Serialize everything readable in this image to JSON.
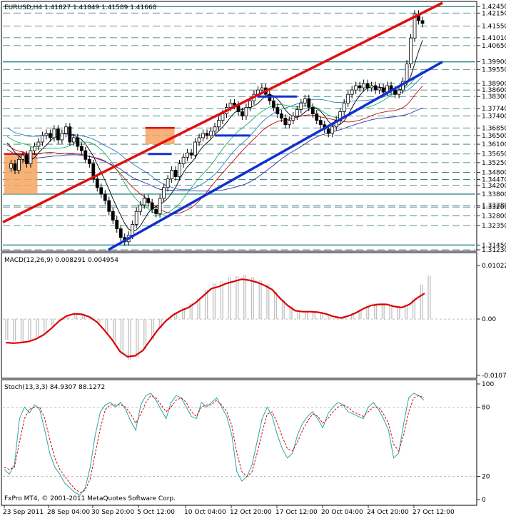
{
  "chart_data": [
    {
      "type": "line",
      "subtype": "candlestick",
      "title": "EURUSD,H4  1.41827 1.41849 1.41589 1.41668",
      "ylim": [
        1.3123,
        1.4262
      ],
      "ytick_labels": [
        "1.42450",
        "1.42150",
        "1.41550",
        "1.41010",
        "1.40650",
        "1.39900",
        "1.39550",
        "1.38900",
        "1.38600",
        "1.38300",
        "1.37740",
        "1.37400",
        "1.36850",
        "1.36500",
        "1.36100",
        "1.35650",
        "1.35250",
        "1.34800",
        "1.34470",
        "1.34200",
        "1.33800",
        "1.33280",
        "1.33200",
        "1.32800",
        "1.32350",
        "1.31450",
        "1.31230"
      ],
      "ytick_values": [
        1.4245,
        1.4215,
        1.4155,
        1.4101,
        1.4065,
        1.399,
        1.3955,
        1.389,
        1.386,
        1.383,
        1.3774,
        1.374,
        1.3685,
        1.365,
        1.361,
        1.3565,
        1.3525,
        1.348,
        1.3447,
        1.342,
        1.338,
        1.3328,
        1.332,
        1.328,
        1.3235,
        1.3145,
        1.3123
      ],
      "highlighted_levels": [
        1.4245,
        1.399,
        1.338,
        1.3145
      ],
      "x_tick_labels": [
        "23 Sep 2011",
        "28 Sep 04:00",
        "30 Sep 20:00",
        "5 Oct 12:00",
        "10 Oct 04:00",
        "12 Oct 20:00",
        "17 Oct 12:00",
        "20 Oct 04:00",
        "24 Oct 20:00",
        "27 Oct 12:00"
      ],
      "close_path": [
        1.35,
        1.352,
        1.349,
        1.354,
        1.356,
        1.352,
        1.358,
        1.36,
        1.362,
        1.365,
        1.366,
        1.364,
        1.368,
        1.363,
        1.366,
        1.369,
        1.362,
        1.364,
        1.36,
        1.358,
        1.354,
        1.352,
        1.345,
        1.341,
        1.338,
        1.335,
        1.33,
        1.326,
        1.322,
        1.318,
        1.316,
        1.319,
        1.324,
        1.33,
        1.333,
        1.336,
        1.334,
        1.331,
        1.329,
        1.336,
        1.341,
        1.345,
        1.349,
        1.346,
        1.352,
        1.355,
        1.357,
        1.356,
        1.362,
        1.364,
        1.366,
        1.365,
        1.367,
        1.369,
        1.372,
        1.375,
        1.378,
        1.38,
        1.379,
        1.376,
        1.374,
        1.378,
        1.381,
        1.384,
        1.386,
        1.387,
        1.384,
        1.381,
        1.378,
        1.375,
        1.373,
        1.37,
        1.372,
        1.374,
        1.377,
        1.38,
        1.382,
        1.378,
        1.375,
        1.372,
        1.37,
        1.368,
        1.366,
        1.369,
        1.372,
        1.376,
        1.38,
        1.384,
        1.386,
        1.388,
        1.387,
        1.389,
        1.387,
        1.388,
        1.386,
        1.387,
        1.385,
        1.388,
        1.386,
        1.384,
        1.386,
        1.39,
        1.398,
        1.41,
        1.421,
        1.418,
        1.4167
      ],
      "channel_lines": [
        {
          "name": "resistance",
          "color": "#e01010",
          "from": [
            0,
            1.325
          ],
          "to": [
            1,
            1.4262
          ]
        },
        {
          "name": "support",
          "color": "#1030d0",
          "from": [
            0.24,
            1.3123
          ],
          "to": [
            1,
            1.399
          ]
        }
      ],
      "annotated_ranges": [
        {
          "color": "#f4a460",
          "from_idx": 0,
          "to_idx": 7,
          "low": 1.338,
          "high": 1.3565
        },
        {
          "color": "#f4a460",
          "from_idx": 36,
          "to_idx": 42,
          "low": 1.361,
          "high": 1.3685
        }
      ],
      "short_support_segments": [
        {
          "color": "#1030d0",
          "from_idx": 36,
          "to_idx": 42,
          "value": 1.3565
        },
        {
          "color": "#1030d0",
          "from_idx": 53,
          "to_idx": 62,
          "value": 1.365
        },
        {
          "color": "#1030d0",
          "from_idx": 64,
          "to_idx": 74,
          "value": 1.383
        }
      ],
      "moving_averages": [
        {
          "color": "#000000",
          "name": ""
        },
        {
          "color": "#2b7fc0",
          "name": ""
        },
        {
          "color": "#20b060",
          "name": ""
        },
        {
          "color": "#c01010",
          "name": ""
        },
        {
          "color": "#3030a0",
          "name": ""
        }
      ]
    },
    {
      "type": "line",
      "title": "MACD(12,26,9) 0.008291 0.004954",
      "ylim": [
        -0.01076,
        0.01022
      ],
      "ytick_labels": [
        "0.01022",
        "0.00",
        "-0.01076"
      ],
      "ytick_values": [
        0.01022,
        0.0,
        -0.01076
      ],
      "signal_color": "#dd0000",
      "histogram_color": "#c0c0c0",
      "signal_path": [
        -0.0045,
        -0.0046,
        -0.0045,
        -0.0043,
        -0.0038,
        -0.003,
        -0.0018,
        -0.0004,
        0.0006,
        0.001,
        0.0009,
        0.0004,
        -0.0006,
        -0.0022,
        -0.004,
        -0.0062,
        -0.0072,
        -0.007,
        -0.006,
        -0.004,
        -0.002,
        -0.0004,
        0.0008,
        0.0016,
        0.0022,
        0.0032,
        0.0045,
        0.0058,
        0.0062,
        0.0068,
        0.0072,
        0.0076,
        0.0074,
        0.007,
        0.0064,
        0.0056,
        0.004,
        0.0026,
        0.0016,
        0.0014,
        0.0014,
        0.0013,
        0.001,
        0.0005,
        0.0002,
        0.0006,
        0.0012,
        0.002,
        0.0026,
        0.0028,
        0.0028,
        0.0024,
        0.0022,
        0.0028,
        0.004,
        0.0049
      ],
      "histogram": [
        -0.004,
        -0.0042,
        -0.0044,
        -0.004,
        -0.0034,
        -0.0026,
        -0.0014,
        -0.0002,
        0.0006,
        0.001,
        0.001,
        0.0004,
        -0.0008,
        -0.0026,
        -0.0046,
        -0.0068,
        -0.0078,
        -0.0074,
        -0.006,
        -0.004,
        -0.0018,
        -0.0001,
        0.0012,
        0.0022,
        0.003,
        0.004,
        0.0056,
        0.0068,
        0.0072,
        0.008,
        0.0082,
        0.0084,
        0.008,
        0.0074,
        0.0066,
        0.0052,
        0.0036,
        0.0024,
        0.0016,
        0.0014,
        0.0016,
        0.0014,
        0.001,
        0.0006,
        0.0004,
        0.001,
        0.0018,
        0.0026,
        0.003,
        0.003,
        0.0028,
        0.0024,
        0.0026,
        0.004,
        0.0066,
        0.0083
      ]
    },
    {
      "type": "line",
      "title": "Stoch(13,3,3) 84.9307 88.1272",
      "ylim": [
        0,
        100
      ],
      "ytick_labels": [
        "100",
        "80",
        "20",
        "0"
      ],
      "ytick_values": [
        100,
        80,
        20,
        0
      ],
      "main_color": "#2aa7a7",
      "signal_color": "#dd0000",
      "main_path": [
        26,
        22,
        30,
        70,
        80,
        75,
        82,
        78,
        60,
        40,
        28,
        22,
        14,
        10,
        6,
        4,
        10,
        28,
        56,
        76,
        82,
        84,
        80,
        84,
        78,
        68,
        60,
        82,
        90,
        92,
        86,
        78,
        70,
        84,
        90,
        88,
        80,
        72,
        70,
        84,
        80,
        84,
        88,
        80,
        72,
        56,
        24,
        16,
        20,
        30,
        50,
        70,
        80,
        72,
        56,
        44,
        36,
        40,
        56,
        66,
        72,
        76,
        70,
        62,
        74,
        80,
        84,
        82,
        76,
        74,
        72,
        70,
        80,
        84,
        78,
        70,
        60,
        36,
        40,
        66,
        88,
        92,
        90,
        86
      ],
      "signal_path": [
        28,
        26,
        28,
        50,
        70,
        78,
        80,
        80,
        70,
        52,
        36,
        26,
        20,
        14,
        9,
        6,
        8,
        18,
        40,
        62,
        78,
        82,
        82,
        82,
        80,
        74,
        66,
        74,
        84,
        90,
        88,
        82,
        76,
        80,
        86,
        88,
        84,
        76,
        72,
        80,
        82,
        82,
        86,
        82,
        76,
        64,
        40,
        24,
        20,
        24,
        40,
        58,
        74,
        76,
        66,
        54,
        44,
        42,
        50,
        60,
        68,
        74,
        72,
        66,
        70,
        76,
        80,
        82,
        80,
        76,
        74,
        72,
        76,
        80,
        80,
        74,
        66,
        48,
        42,
        56,
        76,
        88,
        90,
        88
      ]
    }
  ],
  "footer": "FxPro MT4, © 2001-2011 MetaQuotes Software Corp."
}
